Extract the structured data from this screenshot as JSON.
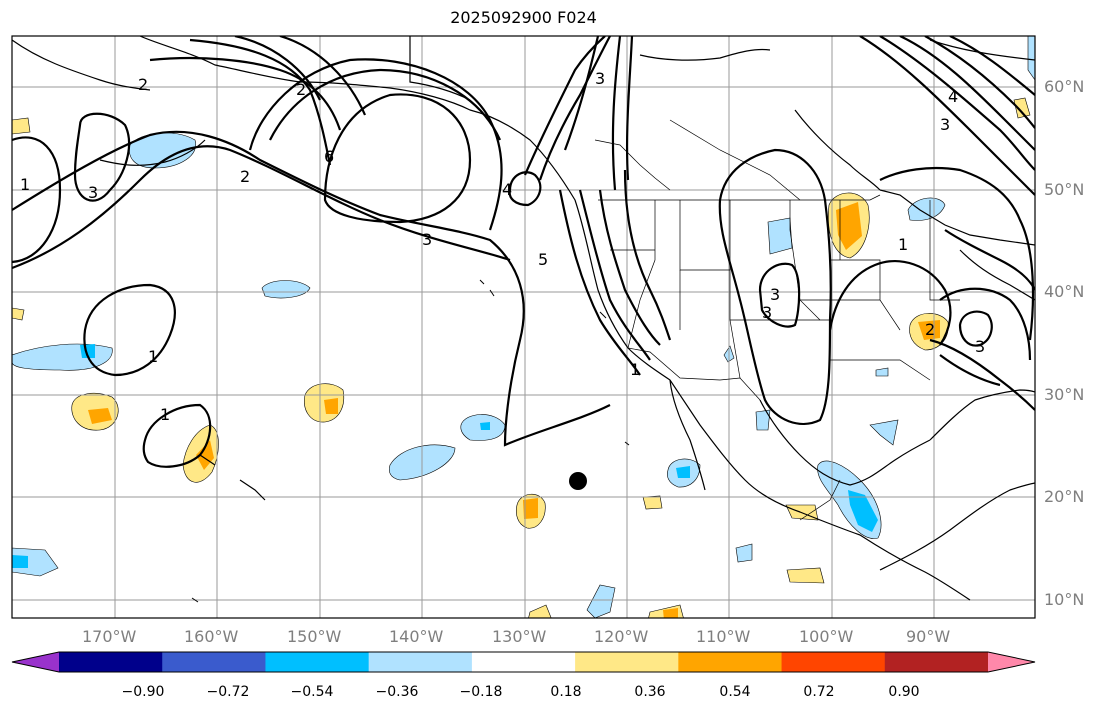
{
  "title": "2025092900 F024",
  "lon_labels": [
    "170°W",
    "160°W",
    "150°W",
    "140°W",
    "130°W",
    "120°W",
    "110°W",
    "100°W",
    "90°W"
  ],
  "lat_labels": [
    "60°N",
    "50°N",
    "40°N",
    "30°N",
    "20°N",
    "10°N"
  ],
  "colorbar": {
    "ticks": [
      "−0.90",
      "−0.72",
      "−0.54",
      "−0.36",
      "−0.18",
      "0.18",
      "0.36",
      "0.54",
      "0.72",
      "0.90"
    ],
    "colors": [
      "#9932cc",
      "#00008b",
      "#3a5bcd",
      "#00bfff",
      "#b0e2ff",
      "#ffffff",
      "#ffe887",
      "#ffa500",
      "#ff4500",
      "#b22222",
      "#ff88aa"
    ]
  },
  "contour_labels": [
    "2",
    "2",
    "1",
    "3",
    "2",
    "6",
    "3",
    "4",
    "5",
    "1",
    "1",
    "1",
    "3",
    "3",
    "1",
    "3",
    "2",
    "3",
    "3",
    "4"
  ],
  "marker": "storm-center"
}
